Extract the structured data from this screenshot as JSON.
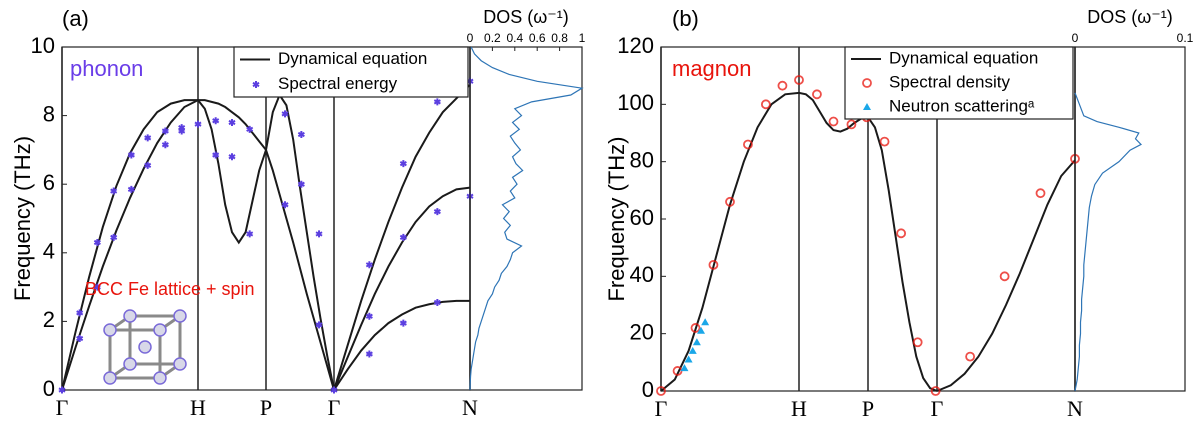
{
  "chart_data": [
    {
      "type": "line",
      "ylabel": "Frequency (THz)",
      "xlim": [
        0,
        3
      ],
      "xticks": [
        {
          "value": 0,
          "label": "Γ"
        },
        {
          "value": 1,
          "label": "H"
        },
        {
          "value": 1.5,
          "label": "P"
        },
        {
          "value": 2,
          "label": "Γ"
        },
        {
          "value": 3,
          "label": "N"
        }
      ],
      "ylim": [
        0,
        10
      ],
      "yticks": [
        0,
        2,
        4,
        6,
        8,
        10
      ],
      "vlines": true,
      "series": [
        {
          "name": "Dynamical equation",
          "color": "#1a1a1a",
          "segments": [
            {
              "x": [
                0,
                0.1,
                0.2,
                0.3,
                0.4,
                0.5,
                0.6,
                0.7,
                0.8,
                0.9,
                1
              ],
              "y": [
                0,
                1.25,
                2.45,
                3.6,
                4.65,
                5.6,
                6.45,
                7.2,
                7.8,
                8.25,
                8.45
              ]
            },
            {
              "x": [
                0,
                0.1,
                0.2,
                0.3,
                0.4,
                0.5,
                0.6,
                0.7,
                0.8,
                0.9,
                1
              ],
              "y": [
                0,
                1.7,
                3.3,
                4.75,
                5.95,
                6.9,
                7.6,
                8.1,
                8.35,
                8.45,
                8.45
              ]
            },
            {
              "x": [
                1,
                1.05,
                1.1,
                1.15,
                1.2,
                1.25,
                1.3,
                1.35,
                1.4,
                1.45,
                1.5
              ],
              "y": [
                8.45,
                8.2,
                7.6,
                6.6,
                5.4,
                4.6,
                4.3,
                4.6,
                5.5,
                6.4,
                7.0
              ]
            },
            {
              "x": [
                1,
                1.05,
                1.1,
                1.15,
                1.2,
                1.25,
                1.3,
                1.35,
                1.4,
                1.45,
                1.5
              ],
              "y": [
                8.45,
                8.45,
                8.4,
                8.35,
                8.25,
                8.1,
                7.95,
                7.75,
                7.5,
                7.25,
                7.0
              ]
            },
            {
              "x": [
                1.5,
                1.55,
                1.6,
                1.65,
                1.7,
                1.75,
                1.8,
                1.85,
                1.9,
                1.95,
                2
              ],
              "y": [
                7.0,
                8.1,
                8.6,
                8.3,
                7.3,
                5.9,
                4.6,
                3.3,
                2.1,
                1.0,
                0
              ]
            },
            {
              "x": [
                1.5,
                1.55,
                1.6,
                1.65,
                1.7,
                1.75,
                1.8,
                1.85,
                1.9,
                1.95,
                2
              ],
              "y": [
                7.0,
                6.4,
                5.7,
                5.0,
                4.3,
                3.55,
                2.8,
                2.1,
                1.4,
                0.7,
                0
              ]
            },
            {
              "x": [
                2,
                2.1,
                2.2,
                2.3,
                2.4,
                2.5,
                2.6,
                2.7,
                2.8,
                2.9,
                3
              ],
              "y": [
                0,
                1.3,
                2.6,
                3.8,
                4.9,
                5.9,
                6.8,
                7.5,
                8.1,
                8.5,
                8.9
              ]
            },
            {
              "x": [
                2,
                2.1,
                2.2,
                2.3,
                2.4,
                2.5,
                2.6,
                2.7,
                2.8,
                2.9,
                3
              ],
              "y": [
                0,
                0.95,
                1.9,
                2.8,
                3.6,
                4.3,
                4.9,
                5.35,
                5.65,
                5.85,
                5.9
              ]
            },
            {
              "x": [
                2,
                2.1,
                2.2,
                2.3,
                2.4,
                2.5,
                2.6,
                2.7,
                2.8,
                2.9,
                3
              ],
              "y": [
                0,
                0.6,
                1.15,
                1.6,
                1.95,
                2.2,
                2.4,
                2.5,
                2.57,
                2.6,
                2.6
              ]
            }
          ]
        },
        {
          "name": "Spectral energy",
          "color": "#5b3fe0",
          "marker": "star",
          "x": [
            0,
            0.13,
            0.13,
            0.26,
            0.26,
            0.38,
            0.38,
            0.51,
            0.51,
            0.63,
            0.63,
            0.76,
            0.76,
            0.88,
            0.88,
            1.0,
            1.13,
            1.13,
            1.25,
            1.25,
            1.38,
            1.38,
            1.64,
            1.64,
            1.76,
            1.76,
            1.89,
            1.89,
            2.0,
            2.26,
            2.26,
            2.26,
            2.51,
            2.51,
            2.51,
            2.76,
            2.76,
            2.76,
            3.0,
            3.0
          ],
          "y": [
            0,
            2.25,
            1.5,
            4.3,
            3.0,
            5.8,
            4.45,
            6.85,
            5.85,
            7.35,
            6.55,
            7.55,
            7.15,
            7.65,
            7.55,
            7.75,
            7.85,
            6.85,
            7.8,
            6.8,
            7.6,
            4.55,
            8.05,
            5.4,
            7.45,
            6.0,
            4.55,
            1.9,
            0,
            3.65,
            2.15,
            1.05,
            6.6,
            4.45,
            1.95,
            8.4,
            5.2,
            2.55,
            9.0,
            5.65
          ]
        }
      ],
      "annotations": [
        {
          "text": "(a)",
          "color": "#000000"
        },
        {
          "text": "phonon",
          "color": "#6a3de8"
        },
        {
          "text": "BCC Fe lattice + spin",
          "color": "#e8140c"
        }
      ]
    },
    {
      "type": "line",
      "swap_axes": true,
      "xlabel": "DOS (ω⁻¹)",
      "color": "#2e75b6",
      "xlim": [
        0,
        1
      ],
      "xticks": [
        0,
        0.2,
        0.4,
        0.6,
        0.8,
        1
      ],
      "ylim": [
        0,
        10
      ],
      "y": [
        0,
        0.2,
        0.4,
        0.6,
        0.8,
        1.0,
        1.2,
        1.4,
        1.6,
        1.8,
        2.0,
        2.2,
        2.4,
        2.6,
        2.8,
        3.0,
        3.2,
        3.4,
        3.6,
        3.8,
        4.0,
        4.2,
        4.4,
        4.6,
        4.8,
        5.0,
        5.2,
        5.4,
        5.6,
        5.8,
        6.0,
        6.2,
        6.4,
        6.6,
        6.8,
        7.0,
        7.2,
        7.4,
        7.6,
        7.8,
        8.0,
        8.2,
        8.4,
        8.6,
        8.8,
        9.0,
        9.2,
        9.4,
        9.6,
        9.8,
        10.0
      ],
      "values": [
        0,
        0.002,
        0.005,
        0.01,
        0.02,
        0.03,
        0.04,
        0.05,
        0.07,
        0.08,
        0.1,
        0.12,
        0.14,
        0.16,
        0.2,
        0.22,
        0.26,
        0.28,
        0.33,
        0.36,
        0.38,
        0.46,
        0.33,
        0.31,
        0.36,
        0.3,
        0.35,
        0.29,
        0.4,
        0.36,
        0.42,
        0.38,
        0.47,
        0.41,
        0.38,
        0.45,
        0.4,
        0.36,
        0.44,
        0.38,
        0.46,
        0.4,
        0.55,
        0.9,
        1.0,
        0.6,
        0.35,
        0.2,
        0.1,
        0.04,
        0.01
      ]
    },
    {
      "type": "line",
      "ylabel": "Frequency (THz)",
      "xlim": [
        0,
        3
      ],
      "xticks": [
        {
          "value": 0,
          "label": "Γ"
        },
        {
          "value": 1,
          "label": "H"
        },
        {
          "value": 1.5,
          "label": "P"
        },
        {
          "value": 2,
          "label": "Γ"
        },
        {
          "value": 3,
          "label": "N"
        }
      ],
      "ylim": [
        0,
        120
      ],
      "yticks": [
        0,
        20,
        40,
        60,
        80,
        100,
        120
      ],
      "vlines": true,
      "series": [
        {
          "name": "Dynamical equation",
          "color": "#1a1a1a",
          "segments": [
            {
              "x": [
                0,
                0.1,
                0.2,
                0.3,
                0.4,
                0.5,
                0.6,
                0.7,
                0.8,
                0.9,
                1
              ],
              "y": [
                0,
                4,
                14,
                29,
                47,
                65,
                80,
                92,
                100,
                103.5,
                104
              ]
            },
            {
              "x": [
                1,
                1.05,
                1.1,
                1.15,
                1.2,
                1.25,
                1.3,
                1.35,
                1.4,
                1.45,
                1.5
              ],
              "y": [
                104,
                103.5,
                101.5,
                97.5,
                93.5,
                91,
                90.5,
                91.5,
                93.5,
                95,
                95.5
              ]
            },
            {
              "x": [
                1.5,
                1.55,
                1.6,
                1.65,
                1.7,
                1.75,
                1.8,
                1.85,
                1.9,
                1.95,
                2
              ],
              "y": [
                95.5,
                92,
                84,
                70,
                54,
                38,
                24,
                12,
                4.5,
                1,
                0
              ]
            },
            {
              "x": [
                2,
                2.1,
                2.2,
                2.3,
                2.4,
                2.5,
                2.6,
                2.7,
                2.8,
                2.9,
                3
              ],
              "y": [
                0,
                2,
                6,
                12,
                20,
                30,
                41,
                53,
                65,
                75,
                80.5
              ]
            }
          ]
        },
        {
          "name": "Spectral density",
          "color": "#e8140c",
          "marker": "circle",
          "x": [
            0,
            0.12,
            0.25,
            0.38,
            0.5,
            0.63,
            0.76,
            0.88,
            1.0,
            1.13,
            1.25,
            1.38,
            1.49,
            1.62,
            1.74,
            1.86,
            1.99,
            2.24,
            2.49,
            2.75,
            3.0
          ],
          "y": [
            0,
            7,
            22,
            44,
            66,
            86,
            100,
            106.5,
            108.5,
            103.5,
            94,
            93,
            95.5,
            87,
            55,
            17,
            0,
            12,
            40,
            69,
            81
          ]
        },
        {
          "name": "Neutron scatteringᵃ",
          "color": "#1aa7e8",
          "marker": "triangle",
          "x": [
            0.17,
            0.2,
            0.23,
            0.26,
            0.29,
            0.32
          ],
          "y": [
            8,
            11,
            14,
            17,
            21,
            24
          ]
        }
      ],
      "annotations": [
        {
          "text": "(b)",
          "color": "#000000"
        },
        {
          "text": "magnon",
          "color": "#e8140c"
        }
      ]
    },
    {
      "type": "line",
      "swap_axes": true,
      "xlabel": "DOS (ω⁻¹)",
      "color": "#2e75b6",
      "xlim": [
        0,
        0.1
      ],
      "xticks": [
        0,
        0.1
      ],
      "ylim": [
        0,
        120
      ],
      "y": [
        0,
        4,
        8,
        12,
        16,
        20,
        24,
        28,
        32,
        36,
        40,
        44,
        48,
        52,
        56,
        60,
        64,
        68,
        72,
        76,
        80,
        84,
        86,
        88,
        90,
        92,
        94,
        96,
        100,
        104
      ],
      "values": [
        0,
        0.002,
        0.003,
        0.004,
        0.004,
        0.005,
        0.005,
        0.006,
        0.006,
        0.007,
        0.008,
        0.008,
        0.009,
        0.01,
        0.011,
        0.012,
        0.013,
        0.015,
        0.018,
        0.025,
        0.04,
        0.05,
        0.06,
        0.055,
        0.058,
        0.04,
        0.02,
        0.008,
        0.004,
        0
      ]
    }
  ]
}
